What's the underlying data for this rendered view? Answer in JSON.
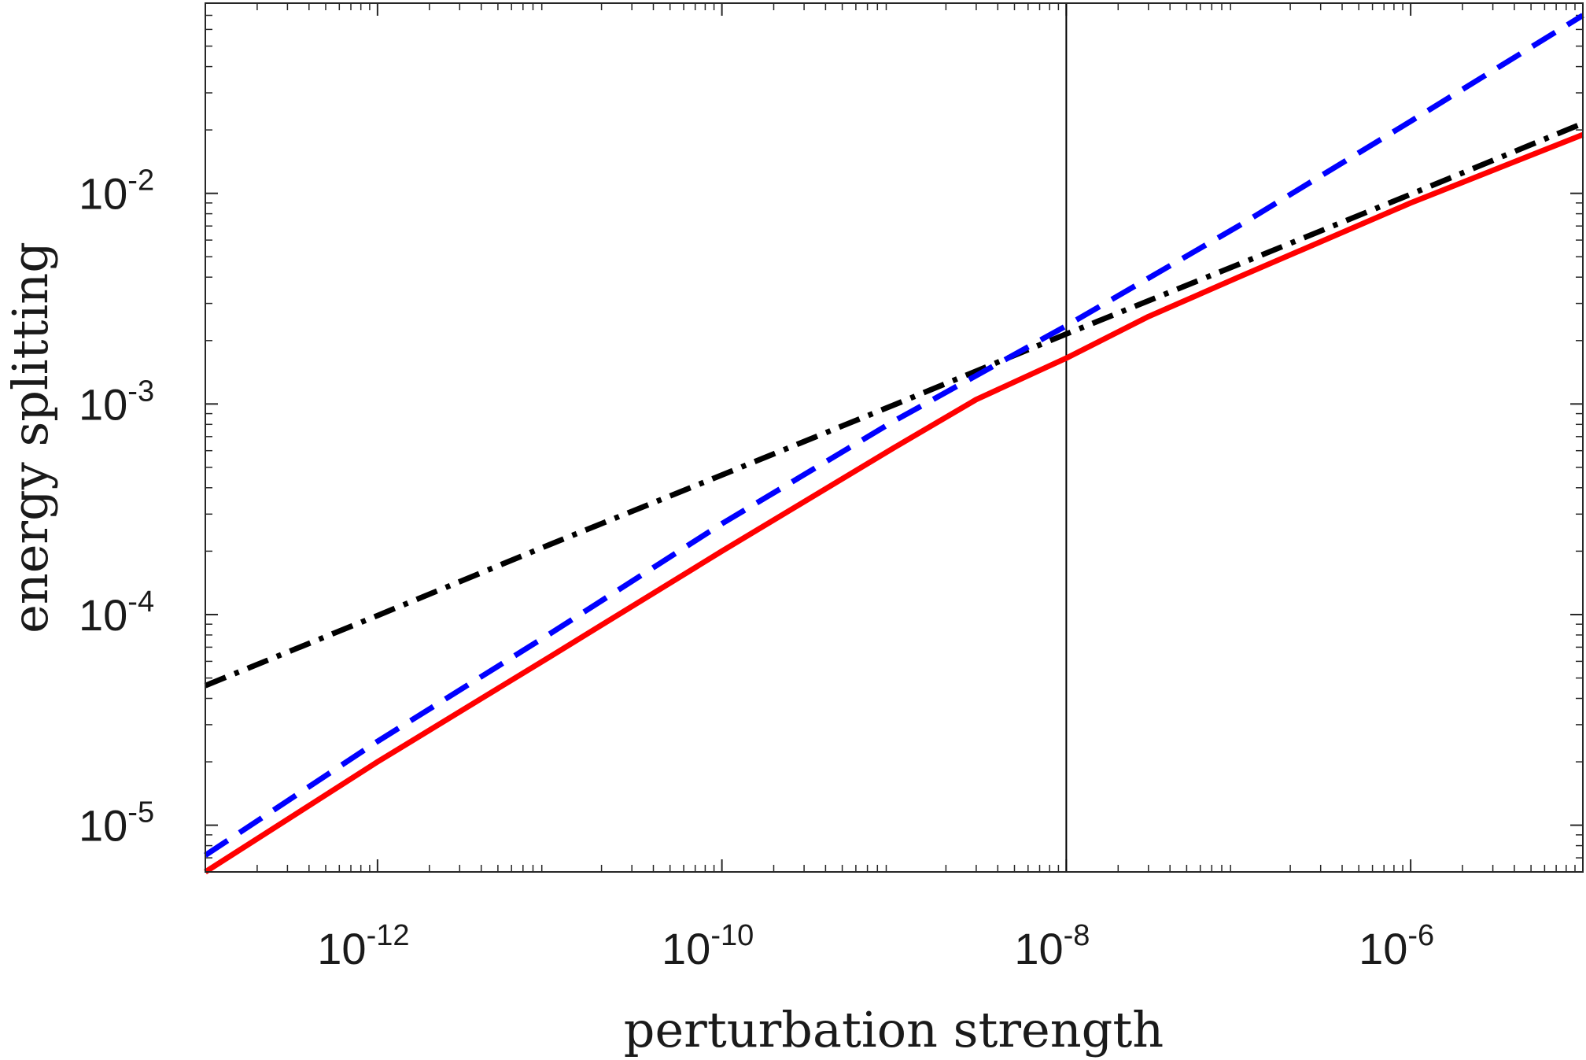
{
  "chart_data": {
    "type": "line",
    "title": "",
    "xlabel": "perturbation strength",
    "ylabel": "energy splitting",
    "xscale": "log",
    "yscale": "log",
    "xlim": [
      1e-13,
      1e-05
    ],
    "ylim": [
      6e-06,
      0.08
    ],
    "grid": false,
    "legend": "none",
    "x_ticks": [
      {
        "base": "10",
        "exp": "-12",
        "value": 1e-12
      },
      {
        "base": "10",
        "exp": "-10",
        "value": 1e-10
      },
      {
        "base": "10",
        "exp": "-8",
        "value": 1e-08
      },
      {
        "base": "10",
        "exp": "-6",
        "value": 1e-06
      }
    ],
    "y_ticks": [
      {
        "base": "10",
        "exp": "-5",
        "value": 1e-05
      },
      {
        "base": "10",
        "exp": "-4",
        "value": 0.0001
      },
      {
        "base": "10",
        "exp": "-3",
        "value": 0.001
      },
      {
        "base": "10",
        "exp": "-2",
        "value": 0.01
      }
    ],
    "vertical_line": {
      "x": 1e-08,
      "color": "#000000"
    },
    "series": [
      {
        "style": "dash-dot",
        "color": "#000000",
        "x": [
          1e-13,
          1e-12,
          1e-11,
          1e-10,
          1e-09,
          1e-08,
          1e-07,
          1e-06,
          1e-05
        ],
        "y": [
          4.6e-05,
          9.9e-05,
          0.000215,
          0.00046,
          0.00099,
          0.00215,
          0.0046,
          0.0099,
          0.0215
        ]
      },
      {
        "style": "dashed",
        "color": "#0000ff",
        "x": [
          1e-13,
          1e-12,
          1e-11,
          1e-10,
          1e-09,
          1e-08,
          1e-07,
          1e-06,
          1e-05
        ],
        "y": [
          7.2e-06,
          2.5e-05,
          8.1e-05,
          0.00027,
          0.00083,
          0.00235,
          0.007,
          0.022,
          0.07
        ]
      },
      {
        "style": "solid",
        "color": "#ff0000",
        "x": [
          1e-13,
          1e-12,
          1e-11,
          1e-10,
          1e-09,
          3e-09,
          1e-08,
          3e-08,
          1e-07,
          1e-06,
          1e-05
        ],
        "y": [
          6e-06,
          2e-05,
          6.3e-05,
          0.0002,
          0.00062,
          0.00105,
          0.00165,
          0.0026,
          0.004,
          0.009,
          0.019
        ]
      }
    ]
  }
}
